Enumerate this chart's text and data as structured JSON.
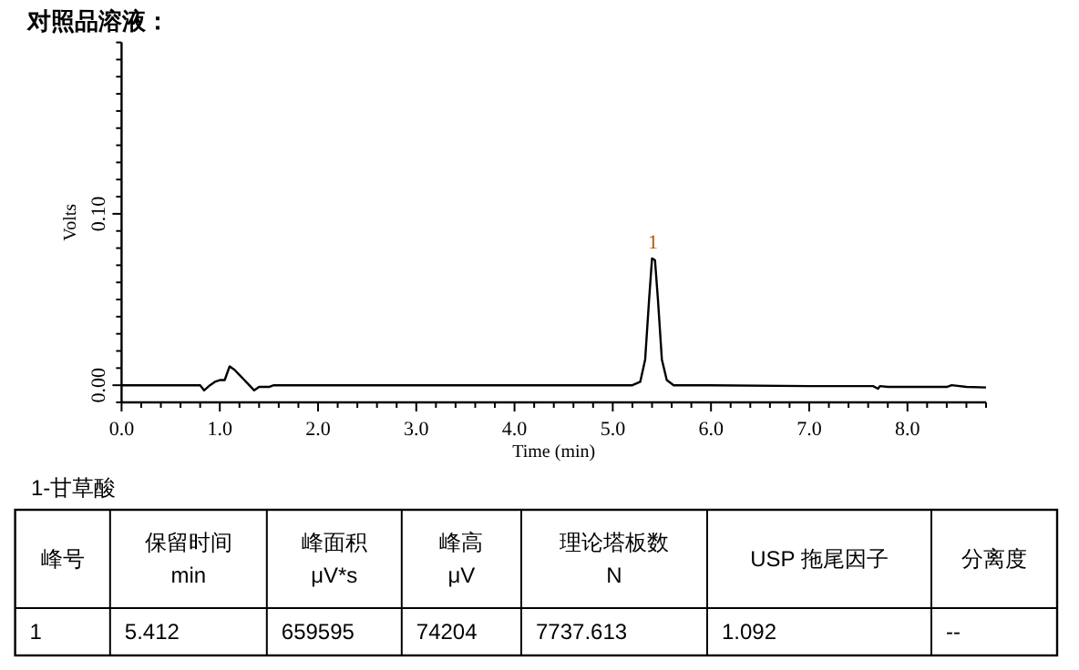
{
  "chart_data": {
    "type": "line",
    "title": "对照品溶液：",
    "xlabel": "Time (min)",
    "ylabel": "Volts",
    "xlim": [
      0,
      8.8
    ],
    "ylim": [
      -0.01,
      0.2
    ],
    "xticks": [
      {
        "value": 0,
        "label": "0.0"
      },
      {
        "value": 1,
        "label": "1.0"
      },
      {
        "value": 2,
        "label": "2.0"
      },
      {
        "value": 3,
        "label": "3.0"
      },
      {
        "value": 4,
        "label": "4.0"
      },
      {
        "value": 5,
        "label": "5.0"
      },
      {
        "value": 6,
        "label": "6.0"
      },
      {
        "value": 7,
        "label": "7.0"
      },
      {
        "value": 8,
        "label": "8.0"
      },
      {
        "value": 0.2,
        "label": null
      },
      {
        "value": 0.4,
        "label": null
      },
      {
        "value": 0.6,
        "label": null
      },
      {
        "value": 0.8,
        "label": null
      },
      {
        "value": 1.2,
        "label": null
      },
      {
        "value": 1.4,
        "label": null
      },
      {
        "value": 1.6,
        "label": null
      },
      {
        "value": 1.8,
        "label": null
      },
      {
        "value": 2.2,
        "label": null
      },
      {
        "value": 2.4,
        "label": null
      },
      {
        "value": 2.6,
        "label": null
      },
      {
        "value": 2.8,
        "label": null
      },
      {
        "value": 3.2,
        "label": null
      },
      {
        "value": 3.4,
        "label": null
      },
      {
        "value": 3.6,
        "label": null
      },
      {
        "value": 3.8,
        "label": null
      },
      {
        "value": 4.2,
        "label": null
      },
      {
        "value": 4.4,
        "label": null
      },
      {
        "value": 4.6,
        "label": null
      },
      {
        "value": 4.8,
        "label": null
      },
      {
        "value": 5.2,
        "label": null
      },
      {
        "value": 5.4,
        "label": null
      },
      {
        "value": 5.6,
        "label": null
      },
      {
        "value": 5.8,
        "label": null
      },
      {
        "value": 6.2,
        "label": null
      },
      {
        "value": 6.4,
        "label": null
      },
      {
        "value": 6.6,
        "label": null
      },
      {
        "value": 6.8,
        "label": null
      },
      {
        "value": 7.2,
        "label": null
      },
      {
        "value": 7.4,
        "label": null
      },
      {
        "value": 7.6,
        "label": null
      },
      {
        "value": 7.8,
        "label": null
      },
      {
        "value": 8.2,
        "label": null
      },
      {
        "value": 8.4,
        "label": null
      },
      {
        "value": 8.6,
        "label": null
      },
      {
        "value": 8.8,
        "label": null
      }
    ],
    "yticks": [
      {
        "value": 0,
        "label": "0.00"
      },
      {
        "value": 0.1,
        "label": "0.10"
      },
      {
        "value": -0.01,
        "label": null
      },
      {
        "value": 0.01,
        "label": null
      },
      {
        "value": 0.02,
        "label": null
      },
      {
        "value": 0.03,
        "label": null
      },
      {
        "value": 0.04,
        "label": null
      },
      {
        "value": 0.05,
        "label": null
      },
      {
        "value": 0.06,
        "label": null
      },
      {
        "value": 0.07,
        "label": null
      },
      {
        "value": 0.08,
        "label": null
      },
      {
        "value": 0.09,
        "label": null
      },
      {
        "value": 0.11,
        "label": null
      },
      {
        "value": 0.12,
        "label": null
      },
      {
        "value": 0.13,
        "label": null
      },
      {
        "value": 0.14,
        "label": null
      },
      {
        "value": 0.15,
        "label": null
      },
      {
        "value": 0.16,
        "label": null
      },
      {
        "value": 0.17,
        "label": null
      },
      {
        "value": 0.18,
        "label": null
      },
      {
        "value": 0.19,
        "label": null
      },
      {
        "value": 0.2,
        "label": null
      }
    ],
    "series": [
      {
        "color": "#000000",
        "x": [
          0,
          0.5,
          0.8,
          0.84,
          0.9,
          0.95,
          1.0,
          1.05,
          1.1,
          1.15,
          1.2,
          1.25,
          1.3,
          1.35,
          1.4,
          1.5,
          1.55,
          2.0,
          3.0,
          4.0,
          5.0,
          5.2,
          5.28,
          5.33,
          5.37,
          5.4,
          5.43,
          5.46,
          5.5,
          5.55,
          5.62,
          6.0,
          7.0,
          7.65,
          7.7,
          7.72,
          7.8,
          8.0,
          8.4,
          8.45,
          8.6,
          8.8
        ],
        "values": [
          0,
          0,
          0,
          -0.003,
          0,
          0.002,
          0.003,
          0.003,
          0.011,
          0.009,
          0.006,
          0.003,
          0,
          -0.003,
          -0.001,
          -0.001,
          0,
          0,
          0,
          0,
          0,
          0,
          0.002,
          0.015,
          0.05,
          0.074,
          0.073,
          0.05,
          0.015,
          0.003,
          0,
          0,
          -0.0005,
          -0.0005,
          -0.002,
          -0.0005,
          -0.001,
          -0.001,
          -0.001,
          0,
          -0.001,
          -0.0013
        ]
      }
    ],
    "annotations": [
      {
        "text": "1",
        "x": 5.41,
        "y": 0.0742
      },
      "1-甘草酸",
      "峰号",
      "保留时间\nmin",
      "峰面积\nμV*s",
      "峰高\nμV",
      "理论塔板数\nN",
      "USP 拖尾因子",
      "分离度",
      "1",
      "5.412",
      "659595",
      "74204",
      "7737.613",
      "1.092",
      "--"
    ]
  }
}
